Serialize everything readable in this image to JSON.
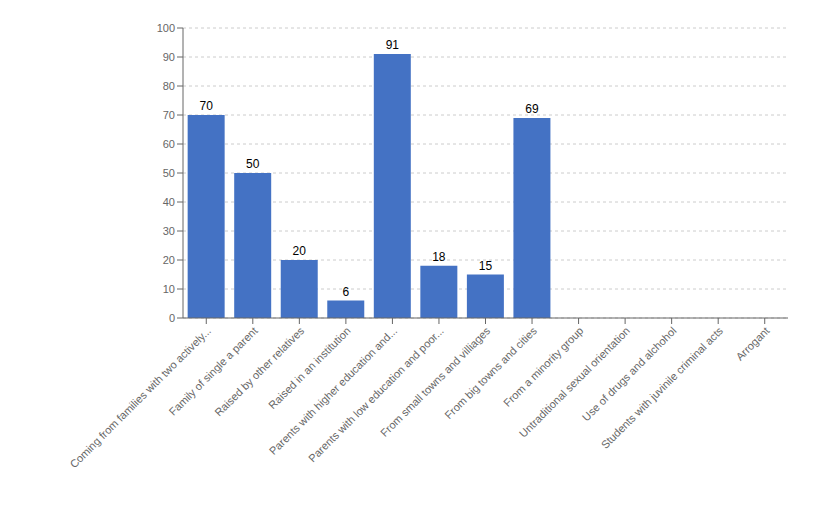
{
  "chart_data": {
    "type": "bar",
    "categories": [
      "Coming from families with two actively...",
      "Family of single a parent",
      "Raised by other relatives",
      "Raised in an institution",
      "Parents with higher education and...",
      "Parents with low education and poor...",
      "From small towns and villiages",
      "From big towns and cities",
      "From a minority group",
      "Untraditional sexual orientation",
      "Use of drugs and alchohol",
      "Students with juvinile criminal acts",
      "Arrogant"
    ],
    "values": [
      70,
      50,
      20,
      6,
      91,
      18,
      15,
      69,
      0,
      0,
      0,
      0,
      0
    ],
    "color": "#4472C4",
    "ylim": [
      0,
      100
    ],
    "yticks": [
      0,
      10,
      20,
      30,
      40,
      50,
      60,
      70,
      80,
      90,
      100
    ],
    "grid": true,
    "data_labels": true
  }
}
